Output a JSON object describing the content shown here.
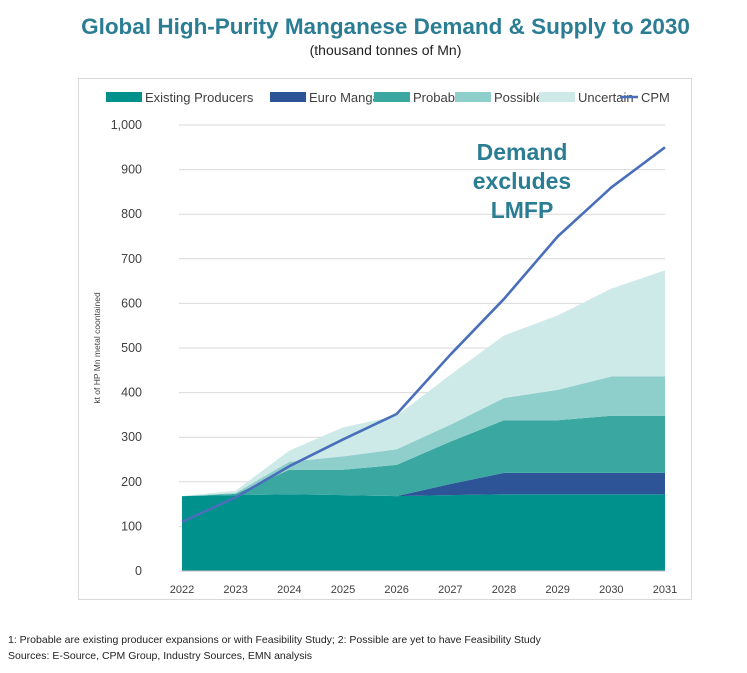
{
  "title": "Global High-Purity Manganese Demand & Supply to 2030",
  "subtitle": "(thousand tonnes of Mn)",
  "footnotes": {
    "line1": "1: Probable  are existing producer expansions or with Feasibility Study; 2: Possible are yet to have Feasibility Study",
    "line2": "Sources: E-Source, CPM Group, Industry Sources, EMN analysis"
  },
  "chart_data": {
    "type": "area",
    "stacked": true,
    "x": [
      "2022",
      "2023",
      "2024",
      "2025",
      "2026",
      "2027",
      "2028",
      "2029",
      "2030",
      "2031"
    ],
    "ylabel": "kt of HP Mn metal coontained",
    "xlabel": "",
    "ylim": [
      0,
      1000
    ],
    "yticks": [
      0,
      100,
      200,
      300,
      400,
      500,
      600,
      700,
      800,
      900,
      1000
    ],
    "ytick_labels": [
      "0",
      "100",
      "200",
      "300",
      "400",
      "500",
      "600",
      "700",
      "800",
      "900",
      "1,000"
    ],
    "grid": true,
    "legend_position": "top",
    "series": [
      {
        "name": "Existing Producers",
        "color": "#00918c",
        "values": [
          168,
          170,
          172,
          170,
          168,
          170,
          172,
          172,
          172,
          172
        ]
      },
      {
        "name": "Euro Manganese",
        "color": "#2c5497",
        "values": [
          0,
          0,
          0,
          0,
          0,
          25,
          48,
          48,
          48,
          48
        ]
      },
      {
        "name": "Probable",
        "color": "#3aa8a1",
        "values": [
          0,
          3,
          55,
          57,
          70,
          95,
          118,
          118,
          128,
          128
        ]
      },
      {
        "name": "Possible",
        "color": "#8ecfcc",
        "values": [
          0,
          2,
          18,
          30,
          35,
          38,
          50,
          68,
          88,
          88
        ]
      },
      {
        "name": "Uncertain",
        "color": "#cde9e8",
        "values": [
          0,
          5,
          25,
          65,
          75,
          112,
          140,
          167,
          197,
          238
        ]
      }
    ],
    "line": {
      "name": "CPM",
      "color": "#4a6fba",
      "values": [
        110,
        165,
        235,
        295,
        352,
        485,
        610,
        750,
        860,
        950
      ]
    },
    "annotation": "Demand\nexcludes\nLMFP",
    "annotation_color": "#2a7d93"
  }
}
